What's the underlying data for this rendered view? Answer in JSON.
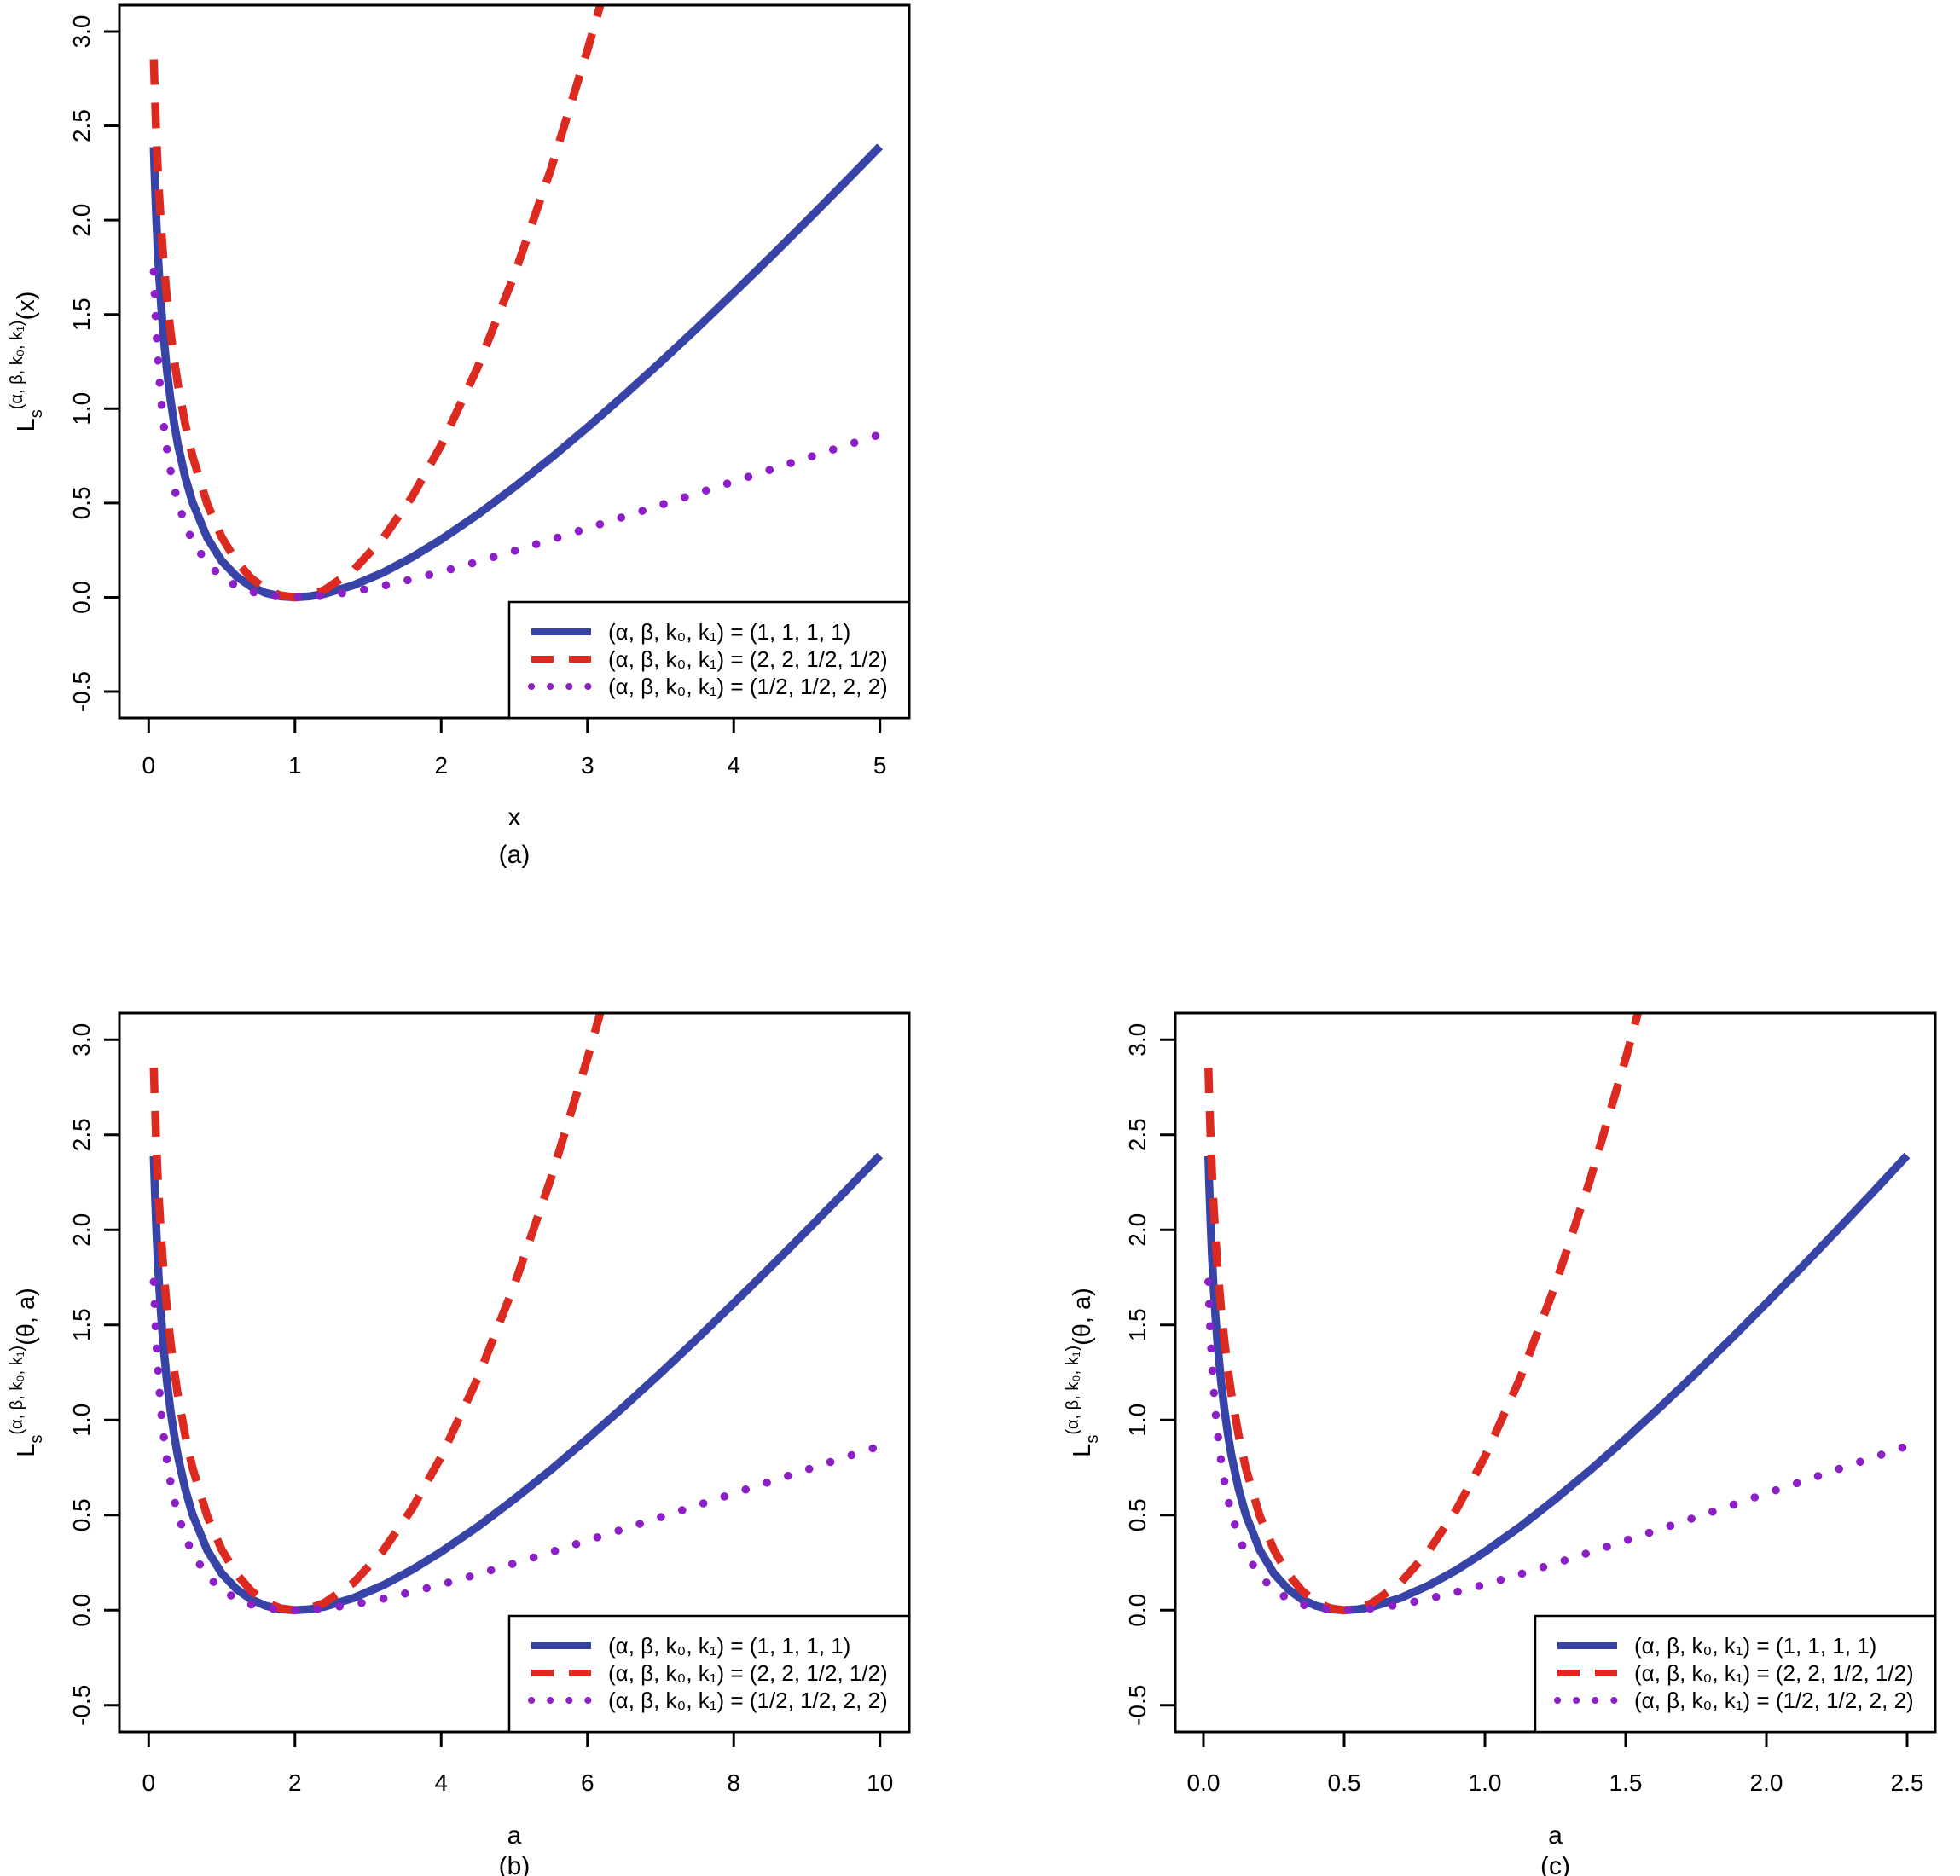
{
  "figure": {
    "background": "#ffffff",
    "axis_color": "#000000",
    "colors": {
      "blue": "#3843a7",
      "red": "#dc2a20",
      "purple": "#8d1fc8"
    },
    "legend_entries": [
      {
        "style": "solid",
        "color": "blue",
        "label": "(α, β, k₀, k₁) = (1, 1, 1, 1)"
      },
      {
        "style": "dashed",
        "color": "red",
        "label": "(α, β, k₀, k₁) = (2, 2, 1/2, 1/2)"
      },
      {
        "style": "dotted",
        "color": "purple",
        "label": "(α, β, k₀, k₁) = (1/2, 1/2, 2, 2)"
      }
    ]
  },
  "chart_data": [
    {
      "id": "a",
      "type": "line",
      "caption": "(a)",
      "xlabel": "x",
      "ylabel_parts": {
        "base": "L",
        "sub": "s",
        "sup": "(α, β, k₀, k₁)",
        "arg": "(x)"
      },
      "xview": [
        -0.2,
        5.2
      ],
      "yview": [
        -0.64,
        3.14
      ],
      "xticks": {
        "values": [
          0,
          1,
          2,
          3,
          4,
          5
        ],
        "labels": [
          "0",
          "1",
          "2",
          "3",
          "4",
          "5"
        ]
      },
      "yticks": {
        "values": [
          -0.5,
          0,
          0.5,
          1,
          1.5,
          2,
          2.5,
          3
        ],
        "labels": [
          "-0.5",
          "0.0",
          "0.5",
          "1.0",
          "1.5",
          "2.0",
          "2.5",
          "3.0"
        ]
      },
      "legend_position": "bottomright",
      "series": [
        {
          "name": "(α, β, k₀, k₁) = (1, 1, 1, 1)",
          "style": "solid",
          "color": "blue",
          "x": [
            0.035,
            0.04,
            0.05,
            0.06,
            0.07,
            0.085,
            0.1,
            0.125,
            0.15,
            0.175,
            0.2,
            0.25,
            0.3,
            0.4,
            0.5,
            0.6,
            0.7,
            0.8,
            0.9,
            1,
            1.1,
            1.2,
            1.4,
            1.6,
            1.8,
            2,
            2.25,
            2.5,
            2.75,
            3,
            3.25,
            3.5,
            3.75,
            4,
            4.25,
            4.5,
            4.75,
            5
          ],
          "y": [
            2.387,
            2.259,
            2.046,
            1.873,
            1.729,
            1.55,
            1.403,
            1.204,
            1.047,
            0.918,
            0.809,
            0.636,
            0.504,
            0.316,
            0.193,
            0.111,
            0.057,
            0.023,
            0.005,
            0,
            0.005,
            0.018,
            0.064,
            0.13,
            0.212,
            0.307,
            0.439,
            0.584,
            0.738,
            0.901,
            1.071,
            1.247,
            1.428,
            1.614,
            1.803,
            1.996,
            2.192,
            2.391
          ]
        },
        {
          "name": "(α, β, k₀, k₁) = (2, 2, 1/2, 1/2)",
          "style": "dashed",
          "color": "red",
          "x": [
            0.035,
            0.04,
            0.05,
            0.06,
            0.07,
            0.085,
            0.1,
            0.125,
            0.15,
            0.175,
            0.2,
            0.25,
            0.3,
            0.4,
            0.5,
            0.6,
            0.7,
            0.8,
            0.9,
            1,
            1.1,
            1.2,
            1.4,
            1.6,
            1.8,
            2,
            2.25,
            2.5,
            2.75,
            3,
            3.1,
            3.2
          ],
          "y": [
            2.853,
            2.72,
            2.497,
            2.315,
            2.162,
            1.969,
            1.808,
            1.587,
            1.408,
            1.258,
            1.129,
            0.918,
            0.749,
            0.496,
            0.318,
            0.191,
            0.102,
            0.043,
            0.01,
            0,
            0.01,
            0.038,
            0.144,
            0.31,
            0.532,
            0.807,
            1.22,
            1.709,
            2.27,
            2.901,
            3.174,
            3.457
          ]
        },
        {
          "name": "(α, β, k₀, k₁) = (1/2, 1/2, 2, 2)",
          "style": "dotted",
          "color": "purple",
          "x": [
            0.035,
            0.04,
            0.05,
            0.06,
            0.07,
            0.085,
            0.1,
            0.125,
            0.15,
            0.175,
            0.2,
            0.25,
            0.3,
            0.4,
            0.5,
            0.6,
            0.7,
            0.8,
            0.9,
            1,
            1.1,
            1.2,
            1.4,
            1.6,
            1.8,
            2,
            2.25,
            2.5,
            2.75,
            3,
            3.25,
            3.5,
            3.75,
            4,
            4.25,
            4.5,
            4.75,
            5
          ],
          "y": [
            1.727,
            1.619,
            1.443,
            1.303,
            1.188,
            1.048,
            0.935,
            0.787,
            0.672,
            0.58,
            0.504,
            0.386,
            0.299,
            0.181,
            0.107,
            0.06,
            0.03,
            0.012,
            0.003,
            0,
            0.002,
            0.009,
            0.03,
            0.06,
            0.096,
            0.135,
            0.189,
            0.246,
            0.305,
            0.366,
            0.427,
            0.489,
            0.551,
            0.614,
            0.676,
            0.739,
            0.801,
            0.863
          ]
        }
      ]
    },
    {
      "id": "b",
      "type": "line",
      "caption": "(b)",
      "xlabel": "a",
      "ylabel_parts": {
        "base": "L",
        "sub": "s",
        "sup": "(α, β, k₀, k₁)",
        "arg": "(θ, a)"
      },
      "xview": [
        -0.4,
        10.4
      ],
      "yview": [
        -0.64,
        3.14
      ],
      "xticks": {
        "values": [
          0,
          2,
          4,
          6,
          8,
          10
        ],
        "labels": [
          "0",
          "2",
          "4",
          "6",
          "8",
          "10"
        ]
      },
      "yticks": {
        "values": [
          -0.5,
          0,
          0.5,
          1,
          1.5,
          2,
          2.5,
          3
        ],
        "labels": [
          "-0.5",
          "0.0",
          "0.5",
          "1.0",
          "1.5",
          "2.0",
          "2.5",
          "3.0"
        ]
      },
      "legend_position": "bottomright",
      "series": [
        {
          "name": "(α, β, k₀, k₁) = (1, 1, 1, 1)",
          "style": "solid",
          "color": "blue",
          "x": [
            0.07,
            0.08,
            0.1,
            0.12,
            0.14,
            0.17,
            0.2,
            0.25,
            0.3,
            0.35,
            0.4,
            0.5,
            0.6,
            0.8,
            1,
            1.2,
            1.4,
            1.6,
            1.8,
            2,
            2.2,
            2.4,
            2.8,
            3.2,
            3.6,
            4,
            4.5,
            5,
            5.5,
            6,
            6.5,
            7,
            7.5,
            8,
            8.5,
            9,
            9.5,
            10
          ],
          "y": [
            2.387,
            2.259,
            2.046,
            1.873,
            1.729,
            1.55,
            1.403,
            1.204,
            1.047,
            0.918,
            0.809,
            0.636,
            0.504,
            0.316,
            0.193,
            0.111,
            0.057,
            0.023,
            0.005,
            0,
            0.005,
            0.018,
            0.064,
            0.13,
            0.212,
            0.307,
            0.439,
            0.584,
            0.738,
            0.901,
            1.071,
            1.247,
            1.428,
            1.614,
            1.803,
            1.996,
            2.192,
            2.391
          ]
        },
        {
          "name": "(α, β, k₀, k₁) = (2, 2, 1/2, 1/2)",
          "style": "dashed",
          "color": "red",
          "x": [
            0.07,
            0.08,
            0.1,
            0.12,
            0.14,
            0.17,
            0.2,
            0.25,
            0.3,
            0.35,
            0.4,
            0.5,
            0.6,
            0.8,
            1,
            1.2,
            1.4,
            1.6,
            1.8,
            2,
            2.2,
            2.4,
            2.8,
            3.2,
            3.6,
            4,
            4.5,
            5,
            5.5,
            6,
            6.2,
            6.4
          ],
          "y": [
            2.853,
            2.72,
            2.497,
            2.315,
            2.162,
            1.969,
            1.808,
            1.587,
            1.408,
            1.258,
            1.129,
            0.918,
            0.749,
            0.496,
            0.318,
            0.191,
            0.102,
            0.043,
            0.01,
            0,
            0.01,
            0.038,
            0.144,
            0.31,
            0.532,
            0.807,
            1.22,
            1.709,
            2.27,
            2.901,
            3.174,
            3.457
          ]
        },
        {
          "name": "(α, β, k₀, k₁) = (1/2, 1/2, 2, 2)",
          "style": "dotted",
          "color": "purple",
          "x": [
            0.07,
            0.08,
            0.1,
            0.12,
            0.14,
            0.17,
            0.2,
            0.25,
            0.3,
            0.35,
            0.4,
            0.5,
            0.6,
            0.8,
            1,
            1.2,
            1.4,
            1.6,
            1.8,
            2,
            2.2,
            2.4,
            2.8,
            3.2,
            3.6,
            4,
            4.5,
            5,
            5.5,
            6,
            6.5,
            7,
            7.5,
            8,
            8.5,
            9,
            9.5,
            10
          ],
          "y": [
            1.727,
            1.619,
            1.443,
            1.303,
            1.188,
            1.048,
            0.935,
            0.787,
            0.672,
            0.58,
            0.504,
            0.386,
            0.299,
            0.181,
            0.107,
            0.06,
            0.03,
            0.012,
            0.003,
            0,
            0.002,
            0.009,
            0.03,
            0.06,
            0.096,
            0.135,
            0.189,
            0.246,
            0.305,
            0.366,
            0.427,
            0.489,
            0.551,
            0.614,
            0.676,
            0.739,
            0.801,
            0.863
          ]
        }
      ]
    },
    {
      "id": "c",
      "type": "line",
      "caption": "(c)",
      "xlabel": "a",
      "ylabel_parts": {
        "base": "L",
        "sub": "s",
        "sup": "(α, β, k₀, k₁)",
        "arg": "(θ, a)"
      },
      "xview": [
        -0.1,
        2.6
      ],
      "yview": [
        -0.64,
        3.14
      ],
      "xticks": {
        "values": [
          0,
          0.5,
          1,
          1.5,
          2,
          2.5
        ],
        "labels": [
          "0.0",
          "0.5",
          "1.0",
          "1.5",
          "2.0",
          "2.5"
        ]
      },
      "yticks": {
        "values": [
          -0.5,
          0,
          0.5,
          1,
          1.5,
          2,
          2.5,
          3
        ],
        "labels": [
          "-0.5",
          "0.0",
          "0.5",
          "1.0",
          "1.5",
          "2.0",
          "2.5",
          "3.0"
        ]
      },
      "legend_position": "bottomright",
      "series": [
        {
          "name": "(α, β, k₀, k₁) = (1, 1, 1, 1)",
          "style": "solid",
          "color": "blue",
          "x": [
            0.0175,
            0.02,
            0.025,
            0.03,
            0.035,
            0.0425,
            0.05,
            0.0625,
            0.075,
            0.0875,
            0.1,
            0.125,
            0.15,
            0.2,
            0.25,
            0.3,
            0.35,
            0.4,
            0.45,
            0.5,
            0.55,
            0.6,
            0.7,
            0.8,
            0.9,
            1,
            1.125,
            1.25,
            1.375,
            1.5,
            1.625,
            1.75,
            1.875,
            2,
            2.125,
            2.25,
            2.375,
            2.5
          ],
          "y": [
            2.387,
            2.259,
            2.046,
            1.873,
            1.729,
            1.55,
            1.403,
            1.204,
            1.047,
            0.918,
            0.809,
            0.636,
            0.504,
            0.316,
            0.193,
            0.111,
            0.057,
            0.023,
            0.005,
            0,
            0.005,
            0.018,
            0.064,
            0.13,
            0.212,
            0.307,
            0.439,
            0.584,
            0.738,
            0.901,
            1.071,
            1.247,
            1.428,
            1.614,
            1.803,
            1.996,
            2.192,
            2.391
          ]
        },
        {
          "name": "(α, β, k₀, k₁) = (2, 2, 1/2, 1/2)",
          "style": "dashed",
          "color": "red",
          "x": [
            0.0175,
            0.02,
            0.025,
            0.03,
            0.035,
            0.0425,
            0.05,
            0.0625,
            0.075,
            0.0875,
            0.1,
            0.125,
            0.15,
            0.2,
            0.25,
            0.3,
            0.35,
            0.4,
            0.45,
            0.5,
            0.55,
            0.6,
            0.7,
            0.8,
            0.9,
            1,
            1.125,
            1.25,
            1.375,
            1.5,
            1.55,
            1.6
          ],
          "y": [
            2.853,
            2.72,
            2.497,
            2.315,
            2.162,
            1.969,
            1.808,
            1.587,
            1.408,
            1.258,
            1.129,
            0.918,
            0.749,
            0.496,
            0.318,
            0.191,
            0.102,
            0.043,
            0.01,
            0,
            0.01,
            0.038,
            0.144,
            0.31,
            0.532,
            0.807,
            1.22,
            1.709,
            2.27,
            2.901,
            3.174,
            3.457
          ]
        },
        {
          "name": "(α, β, k₀, k₁) = (1/2, 1/2, 2, 2)",
          "style": "dotted",
          "color": "purple",
          "x": [
            0.0175,
            0.02,
            0.025,
            0.03,
            0.035,
            0.0425,
            0.05,
            0.0625,
            0.075,
            0.0875,
            0.1,
            0.125,
            0.15,
            0.2,
            0.25,
            0.3,
            0.35,
            0.4,
            0.45,
            0.5,
            0.55,
            0.6,
            0.7,
            0.8,
            0.9,
            1,
            1.125,
            1.25,
            1.375,
            1.5,
            1.625,
            1.75,
            1.875,
            2,
            2.125,
            2.25,
            2.375,
            2.5
          ],
          "y": [
            1.727,
            1.619,
            1.443,
            1.303,
            1.188,
            1.048,
            0.935,
            0.787,
            0.672,
            0.58,
            0.504,
            0.386,
            0.299,
            0.181,
            0.107,
            0.06,
            0.03,
            0.012,
            0.003,
            0,
            0.002,
            0.009,
            0.03,
            0.06,
            0.096,
            0.135,
            0.189,
            0.246,
            0.305,
            0.366,
            0.427,
            0.489,
            0.551,
            0.614,
            0.676,
            0.739,
            0.801,
            0.863
          ]
        }
      ]
    }
  ]
}
